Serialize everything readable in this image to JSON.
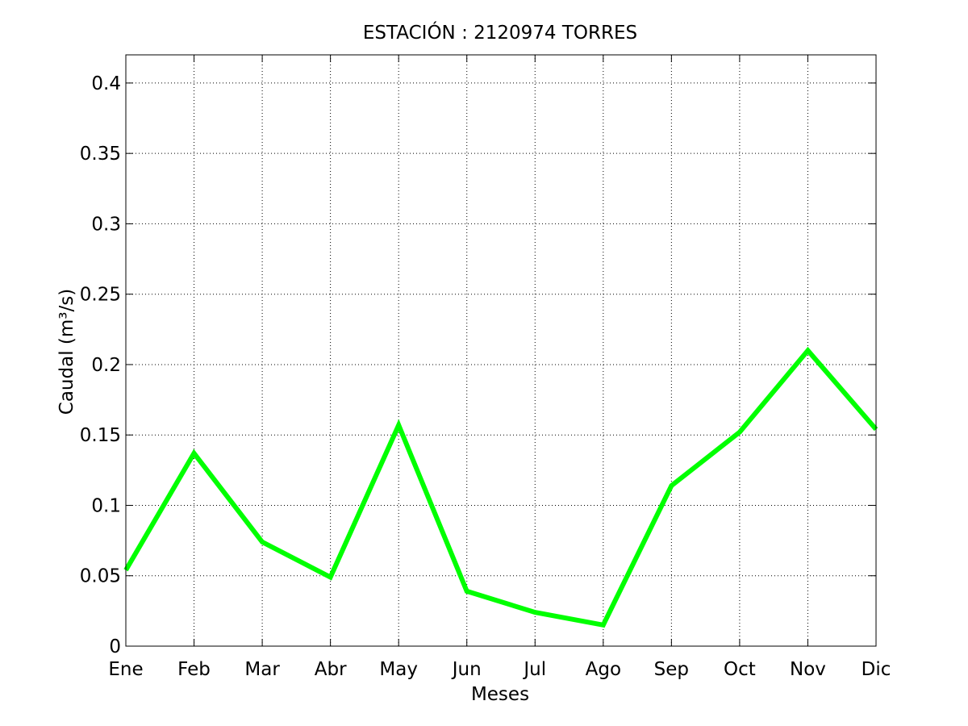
{
  "chart_data": {
    "type": "line",
    "title": "ESTACIÓN : 2120974  TORRES",
    "xlabel": "Meses",
    "ylabel": "Caudal (m³/s)",
    "categories": [
      "Ene",
      "Feb",
      "Mar",
      "Abr",
      "May",
      "Jun",
      "Jul",
      "Ago",
      "Sep",
      "Oct",
      "Nov",
      "Dic"
    ],
    "series": [
      {
        "values": [
          0.054,
          0.137,
          0.074,
          0.049,
          0.157,
          0.039,
          0.024,
          0.015,
          0.114,
          0.152,
          0.21,
          0.154
        ],
        "color": "#00ff00"
      }
    ],
    "yticks": [
      "0",
      "0.05",
      "0.1",
      "0.15",
      "0.2",
      "0.25",
      "0.3",
      "0.35",
      "0.4"
    ],
    "ytick_values": [
      0,
      0.05,
      0.1,
      0.15,
      0.2,
      0.25,
      0.3,
      0.35,
      0.4
    ],
    "ylim": [
      0,
      0.42
    ],
    "grid": true,
    "axis_color": "#000000",
    "grid_color": "#000000",
    "background": "#ffffff"
  }
}
